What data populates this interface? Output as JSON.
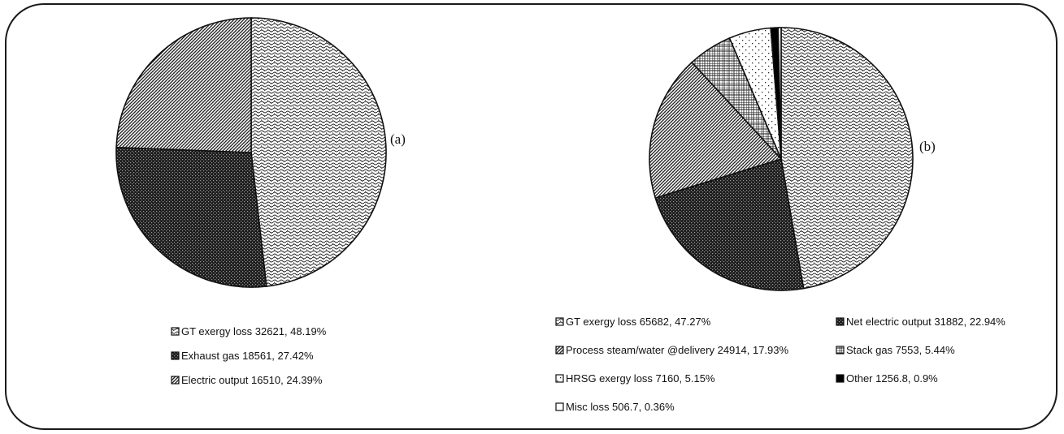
{
  "chart_data": [
    {
      "type": "pie",
      "panel_label": "(a)",
      "slices": [
        {
          "label": "GT exergy loss 32621, 48.19%",
          "value": 48.19,
          "pattern": "wave-dense"
        },
        {
          "label": "Exhaust gas 18561, 27.42%",
          "value": 27.42,
          "pattern": "dark-checker"
        },
        {
          "label": "Electric output 16510, 24.39%",
          "value": 24.39,
          "pattern": "diagonal-dense"
        }
      ],
      "legend_placement": "bottom"
    },
    {
      "type": "pie",
      "panel_label": "(b)",
      "slices": [
        {
          "label": "GT exergy loss 65682, 47.27%",
          "value": 47.27,
          "pattern": "wave-dense"
        },
        {
          "label": "Net electric output 31882, 22.94%",
          "value": 22.94,
          "pattern": "dark-checker"
        },
        {
          "label": "Process steam/water @delivery 24914, 17.93%",
          "value": 17.93,
          "pattern": "diagonal-dense"
        },
        {
          "label": "Stack gas 7553, 5.44%",
          "value": 5.44,
          "pattern": "grid"
        },
        {
          "label": "HRSG exergy loss 7160, 5.15%",
          "value": 5.15,
          "pattern": "sparse-dots"
        },
        {
          "label": "Other 1256.8, 0.9%",
          "value": 0.9,
          "pattern": "solid-black"
        },
        {
          "label": "Misc loss 506.7, 0.36%",
          "value": 0.36,
          "pattern": "white"
        }
      ],
      "legend_placement": "bottom"
    }
  ]
}
